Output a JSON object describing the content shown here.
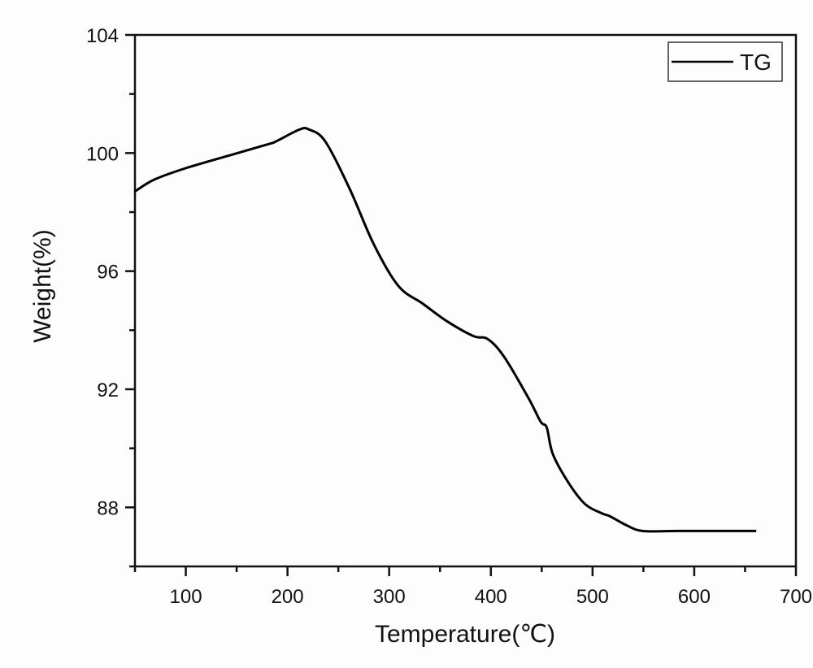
{
  "chart_data": {
    "type": "line",
    "title": "",
    "xlabel": "Temperature(℃)",
    "ylabel": "Weight(%)",
    "xlim": [
      50,
      700
    ],
    "ylim": [
      86,
      104
    ],
    "xticks": [
      100,
      200,
      300,
      400,
      500,
      600,
      700
    ],
    "yticks": [
      88,
      92,
      96,
      100,
      104
    ],
    "x_minor_step": 50,
    "y_minor_step": 2,
    "grid": false,
    "legend_position": "top-right",
    "series": [
      {
        "name": "TG",
        "color": "#000000",
        "x": [
          50,
          69,
          101,
          141,
          181,
          189,
          212,
          221,
          237,
          261,
          285,
          309,
          333,
          357,
          383,
          397,
          413,
          437,
          449,
          455,
          461,
          477,
          493,
          509,
          517,
          533,
          549,
          581,
          605,
          633,
          661
        ],
        "y": [
          98.7,
          99.1,
          99.5,
          99.9,
          100.3,
          100.4,
          100.8,
          100.8,
          100.4,
          98.8,
          96.9,
          95.5,
          94.9,
          94.3,
          93.8,
          93.7,
          93.1,
          91.7,
          90.9,
          90.7,
          89.8,
          88.8,
          88.1,
          87.8,
          87.7,
          87.4,
          87.2,
          87.2,
          87.2,
          87.2,
          87.2
        ]
      }
    ]
  }
}
